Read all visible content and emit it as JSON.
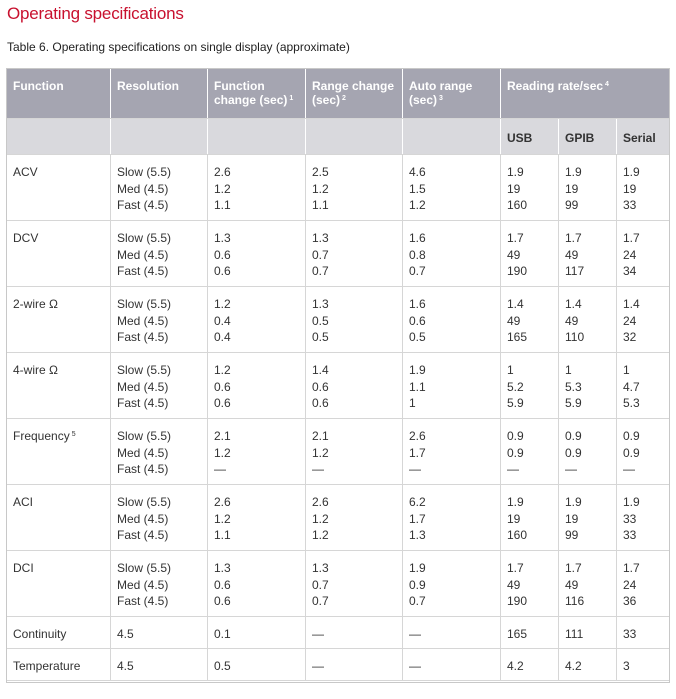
{
  "page": {
    "title": "Operating specifications",
    "caption": "Table 6. Operating specifications on single display (approximate)"
  },
  "columns": {
    "function": "Function",
    "resolution": "Resolution",
    "function_change": "Function change (sec)",
    "function_change_note": "1",
    "range_change": "Range change (sec)",
    "range_change_note": "2",
    "auto_range": "Auto range (sec)",
    "auto_range_note": "3",
    "reading_rate": "Reading rate/sec",
    "reading_rate_note": "4",
    "usb": "USB",
    "gpib": "GPIB",
    "serial": "Serial"
  },
  "rows": [
    {
      "function": "ACV",
      "note": "",
      "resolution": [
        "Slow (5.5)",
        "Med (4.5)",
        "Fast (4.5)"
      ],
      "function_change": [
        "2.6",
        "1.2",
        "1.1"
      ],
      "range_change": [
        "2.5",
        "1.2",
        "1.1"
      ],
      "auto_range": [
        "4.6",
        "1.5",
        "1.2"
      ],
      "usb": [
        "1.9",
        "19",
        "160"
      ],
      "gpib": [
        "1.9",
        "19",
        "99"
      ],
      "serial": [
        "1.9",
        "19",
        "33"
      ]
    },
    {
      "function": "DCV",
      "note": "",
      "resolution": [
        "Slow (5.5)",
        "Med (4.5)",
        "Fast (4.5)"
      ],
      "function_change": [
        "1.3",
        "0.6",
        "0.6"
      ],
      "range_change": [
        "1.3",
        "0.7",
        "0.7"
      ],
      "auto_range": [
        "1.6",
        "0.8",
        "0.7"
      ],
      "usb": [
        "1.7",
        "49",
        "190"
      ],
      "gpib": [
        "1.7",
        "49",
        "117"
      ],
      "serial": [
        "1.7",
        "24",
        "34"
      ]
    },
    {
      "function": "2-wire Ω",
      "note": "",
      "resolution": [
        "Slow (5.5)",
        "Med (4.5)",
        "Fast (4.5)"
      ],
      "function_change": [
        "1.2",
        "0.4",
        "0.4"
      ],
      "range_change": [
        "1.3",
        "0.5",
        "0.5"
      ],
      "auto_range": [
        "1.6",
        "0.6",
        "0.5"
      ],
      "usb": [
        "1.4",
        "49",
        "165"
      ],
      "gpib": [
        "1.4",
        "49",
        "110"
      ],
      "serial": [
        "1.4",
        "24",
        "32"
      ]
    },
    {
      "function": "4-wire Ω",
      "note": "",
      "resolution": [
        "Slow (5.5)",
        "Med (4.5)",
        "Fast (4.5)"
      ],
      "function_change": [
        "1.2",
        "0.6",
        "0.6"
      ],
      "range_change": [
        "1.4",
        "0.6",
        "0.6"
      ],
      "auto_range": [
        "1.9",
        "1.1",
        "1"
      ],
      "usb": [
        "1",
        "5.2",
        "5.9"
      ],
      "gpib": [
        "1",
        "5.3",
        "5.9"
      ],
      "serial": [
        "1",
        "4.7",
        "5.3"
      ]
    },
    {
      "function": "Frequency",
      "note": "5",
      "resolution": [
        "Slow (5.5)",
        "Med (4.5)",
        "Fast (4.5)"
      ],
      "function_change": [
        "2.1",
        "1.2",
        "—"
      ],
      "range_change": [
        "2.1",
        "1.2",
        "—"
      ],
      "auto_range": [
        "2.6",
        "1.7",
        "—"
      ],
      "usb": [
        "0.9",
        "0.9",
        "—"
      ],
      "gpib": [
        "0.9",
        "0.9",
        "—"
      ],
      "serial": [
        "0.9",
        "0.9",
        "—"
      ]
    },
    {
      "function": "ACI",
      "note": "",
      "resolution": [
        "Slow (5.5)",
        "Med (4.5)",
        "Fast (4.5)"
      ],
      "function_change": [
        "2.6",
        "1.2",
        "1.1"
      ],
      "range_change": [
        "2.6",
        "1.2",
        "1.2"
      ],
      "auto_range": [
        "6.2",
        "1.7",
        "1.3"
      ],
      "usb": [
        "1.9",
        "19",
        "160"
      ],
      "gpib": [
        "1.9",
        "19",
        "99"
      ],
      "serial": [
        "1.9",
        "33",
        "33"
      ]
    },
    {
      "function": "DCI",
      "note": "",
      "resolution": [
        "Slow (5.5)",
        "Med (4.5)",
        "Fast (4.5)"
      ],
      "function_change": [
        "1.3",
        "0.6",
        "0.6"
      ],
      "range_change": [
        "1.3",
        "0.7",
        "0.7"
      ],
      "auto_range": [
        "1.9",
        "0.9",
        "0.7"
      ],
      "usb": [
        "1.7",
        "49",
        "190"
      ],
      "gpib": [
        "1.7",
        "49",
        "116"
      ],
      "serial": [
        "1.7",
        "24",
        "36"
      ]
    },
    {
      "function": "Continuity",
      "note": "",
      "resolution": [
        "4.5"
      ],
      "function_change": [
        "0.1"
      ],
      "range_change": [
        "—"
      ],
      "auto_range": [
        "—"
      ],
      "usb": [
        "165"
      ],
      "gpib": [
        "111"
      ],
      "serial": [
        "33"
      ]
    },
    {
      "function": "Temperature",
      "note": "",
      "resolution": [
        "4.5"
      ],
      "function_change": [
        "0.5"
      ],
      "range_change": [
        "—"
      ],
      "auto_range": [
        "—"
      ],
      "usb": [
        "4.2"
      ],
      "gpib": [
        "4.2"
      ],
      "serial": [
        "3"
      ]
    }
  ]
}
